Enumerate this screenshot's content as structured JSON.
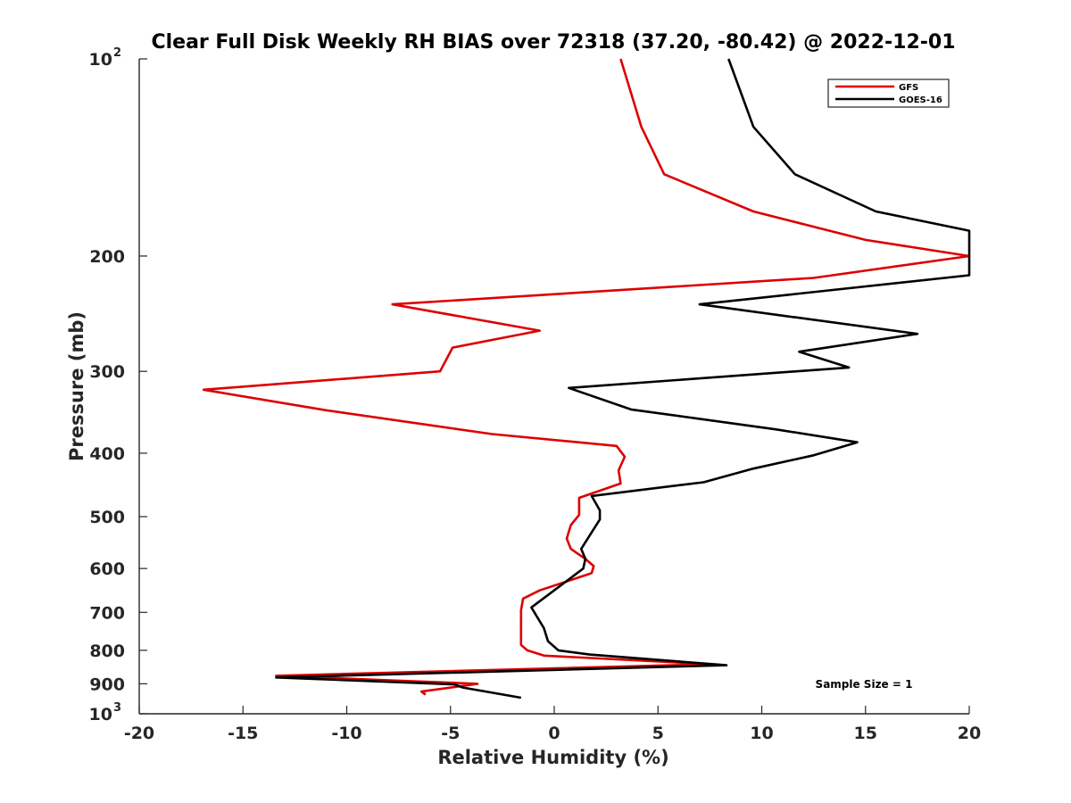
{
  "chart_data": {
    "type": "line",
    "title": "Clear Full Disk Weekly RH BIAS over 72318 (37.20, -80.42) @ 2022-12-01",
    "xlabel": "Relative Humidity (%)",
    "ylabel": "Pressure (mb)",
    "xlim": [
      -20,
      20
    ],
    "ylim": [
      100,
      1000
    ],
    "y_scale": "log",
    "y_reversed": true,
    "x_ticks": [
      "-20",
      "-15",
      "-10",
      "-5",
      "0",
      "5",
      "10",
      "15",
      "20"
    ],
    "y_ticks": [
      {
        "value": 100,
        "base": "10",
        "exp": "2"
      },
      {
        "value": 200,
        "label": "200"
      },
      {
        "value": 300,
        "label": "300"
      },
      {
        "value": 400,
        "label": "400"
      },
      {
        "value": 500,
        "label": "500"
      },
      {
        "value": 600,
        "label": "600"
      },
      {
        "value": 700,
        "label": "700"
      },
      {
        "value": 800,
        "label": "800"
      },
      {
        "value": 900,
        "label": "900"
      },
      {
        "value": 1000,
        "base": "10",
        "exp": "3"
      }
    ],
    "grid": false,
    "legend_position": "top-right",
    "annotation": "Sample Size = 1",
    "series": [
      {
        "name": "GFS",
        "color": "#dd0000",
        "points": [
          [
            3.2,
            100
          ],
          [
            4.2,
            127
          ],
          [
            5.3,
            150
          ],
          [
            9.6,
            171
          ],
          [
            15,
            189
          ],
          [
            20,
            200
          ],
          [
            12.5,
            216
          ],
          [
            -7.8,
            237
          ],
          [
            -0.7,
            260
          ],
          [
            -4.9,
            276
          ],
          [
            -5.5,
            300
          ],
          [
            -16.9,
            320
          ],
          [
            -11,
            344
          ],
          [
            -3,
            374
          ],
          [
            3.0,
            390
          ],
          [
            3.4,
            405
          ],
          [
            3.1,
            425
          ],
          [
            3.2,
            445
          ],
          [
            1.2,
            468
          ],
          [
            1.2,
            497
          ],
          [
            0.8,
            515
          ],
          [
            0.6,
            540
          ],
          [
            0.8,
            560
          ],
          [
            1.5,
            580
          ],
          [
            1.9,
            595
          ],
          [
            1.8,
            610
          ],
          [
            -0.7,
            648
          ],
          [
            -1.5,
            667
          ],
          [
            -1.6,
            695
          ],
          [
            -1.6,
            785
          ],
          [
            -1.3,
            800
          ],
          [
            -0.5,
            815
          ],
          [
            7.5,
            840
          ],
          [
            -13.4,
            875
          ],
          [
            -3.7,
            900
          ],
          [
            -6.4,
            925
          ],
          [
            -6.2,
            935
          ]
        ]
      },
      {
        "name": "GOES-16",
        "color": "#000000",
        "points": [
          [
            8.4,
            100
          ],
          [
            9.6,
            127
          ],
          [
            11.6,
            150
          ],
          [
            15.5,
            171
          ],
          [
            20,
            183
          ],
          [
            20,
            214
          ],
          [
            7.0,
            237
          ],
          [
            17.5,
            263
          ],
          [
            11.8,
            280
          ],
          [
            14.2,
            296
          ],
          [
            0.7,
            318
          ],
          [
            3.7,
            343
          ],
          [
            10.7,
            368
          ],
          [
            14.6,
            385
          ],
          [
            12.5,
            403
          ],
          [
            9.5,
            423
          ],
          [
            7.2,
            443
          ],
          [
            1.8,
            465
          ],
          [
            2.2,
            489
          ],
          [
            2.2,
            505
          ],
          [
            1.3,
            560
          ],
          [
            1.5,
            580
          ],
          [
            1.4,
            600
          ],
          [
            -1.1,
            688
          ],
          [
            -0.5,
            740
          ],
          [
            -0.3,
            775
          ],
          [
            0.2,
            800
          ],
          [
            1.7,
            812
          ],
          [
            8.3,
            843
          ],
          [
            -13.4,
            880
          ],
          [
            -4.8,
            902
          ],
          [
            -4.4,
            912
          ],
          [
            -1.6,
            945
          ]
        ]
      }
    ]
  }
}
